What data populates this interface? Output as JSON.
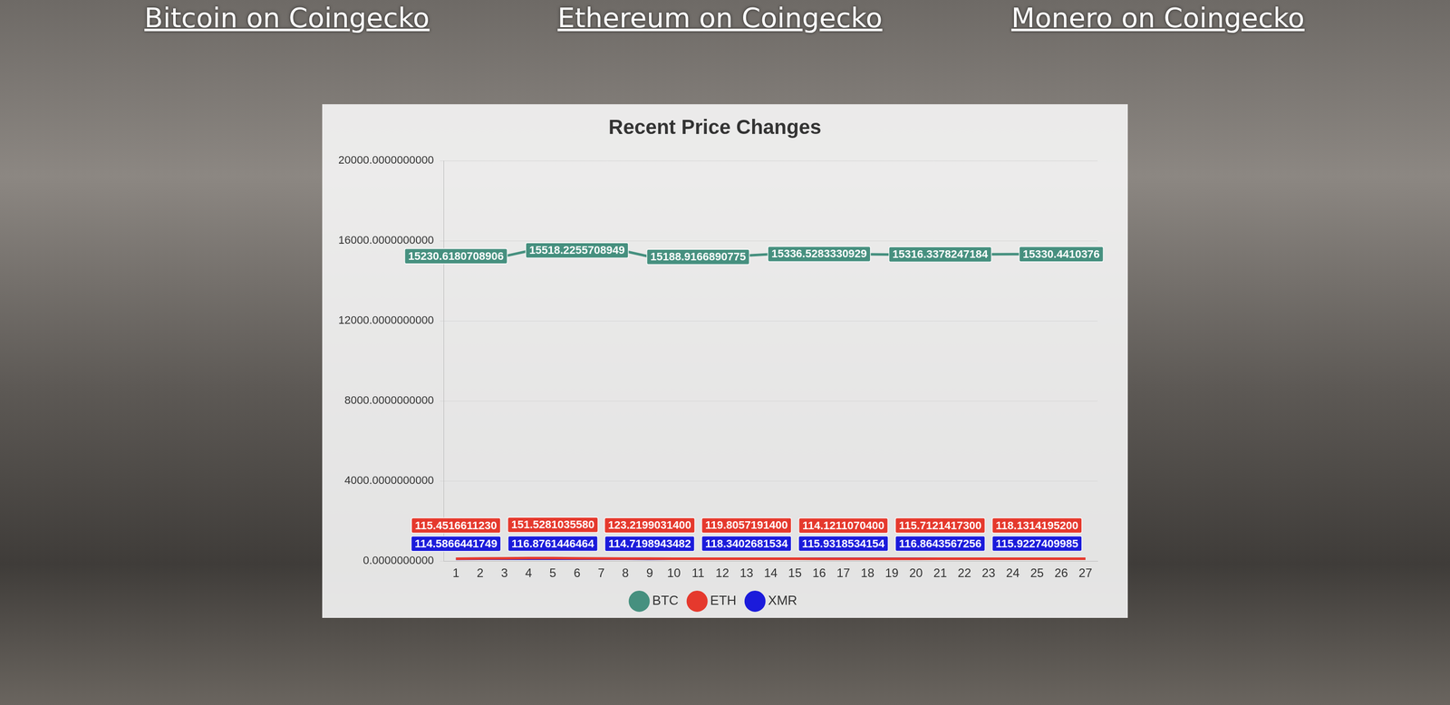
{
  "links": [
    "Bitcoin on Coingecko",
    "Ethereum on Coingecko",
    "Monero on Coingecko"
  ],
  "chart_data": {
    "type": "line",
    "title": "Recent Price Changes",
    "categories": [
      "1",
      "2",
      "3",
      "4",
      "5",
      "6",
      "7",
      "8",
      "9",
      "10",
      "11",
      "12",
      "13",
      "14",
      "15",
      "16",
      "17",
      "18",
      "19",
      "20",
      "21",
      "22",
      "23",
      "24",
      "25",
      "26",
      "27"
    ],
    "series": [
      {
        "name": "BTC",
        "color": "#46907f",
        "values": [
          15230.6180708906,
          15241,
          15225,
          15490,
          15512,
          15518.2255708949,
          15505,
          15470,
          15203,
          15195,
          15188.9166890775,
          15201,
          15262,
          15330,
          15342,
          15336.5283330929,
          15328,
          15320,
          15312,
          15310,
          15316.3378247184,
          15321,
          15325,
          15328,
          15331,
          15330.4410376,
          15333
        ],
        "value_labels": [
          "15230.6180708906",
          null,
          null,
          null,
          null,
          "15518.2255708949",
          null,
          null,
          null,
          null,
          "15188.9166890775",
          null,
          null,
          null,
          null,
          "15336.5283330929",
          null,
          null,
          null,
          null,
          "15316.3378247184",
          null,
          null,
          null,
          null,
          "15330.4410376",
          null
        ]
      },
      {
        "name": "ETH",
        "color": "#e5392d",
        "values": [
          115.451661123,
          128,
          140,
          148,
          151.528103558,
          140,
          131,
          126,
          123.21990314,
          121,
          120,
          119,
          119.80571914,
          118,
          116,
          115,
          114.12110704,
          114,
          115,
          115,
          115.71214173,
          116,
          117,
          118,
          118.13141952,
          118,
          118
        ],
        "value_labels": [
          "115.4516611230",
          null,
          null,
          null,
          "151.5281035580",
          null,
          null,
          null,
          "123.2199031400",
          null,
          null,
          null,
          "119.8057191400",
          null,
          null,
          null,
          "114.1211070400",
          null,
          null,
          null,
          "115.7121417300",
          null,
          null,
          null,
          "118.1314195200",
          null,
          null
        ]
      },
      {
        "name": "XMR",
        "color": "#1b1bdb",
        "values": [
          114.5866441749,
          115.3,
          116.1,
          116.6,
          116.8761446464,
          116.2,
          115.6,
          115.1,
          114.7198943482,
          115.6,
          116.8,
          117.7,
          118.3402681534,
          117.6,
          116.9,
          116.3,
          115.9318534154,
          116.2,
          116.5,
          116.7,
          116.8643567256,
          116.6,
          116.3,
          116.1,
          115.9227409985,
          116,
          116.1
        ],
        "value_labels": [
          "114.5866441749",
          null,
          null,
          null,
          "116.8761446464",
          null,
          null,
          null,
          "114.7198943482",
          null,
          null,
          null,
          "118.3402681534",
          null,
          null,
          null,
          "115.9318534154",
          null,
          null,
          null,
          "116.8643567256",
          null,
          null,
          null,
          "115.9227409985",
          null,
          null
        ]
      }
    ],
    "ylim": [
      0,
      20000
    ],
    "yticks": [
      {
        "value": 0,
        "label": "0.0000000000"
      },
      {
        "value": 4000,
        "label": "4000.0000000000"
      },
      {
        "value": 8000,
        "label": "8000.0000000000"
      },
      {
        "value": 12000,
        "label": "12000.0000000000"
      },
      {
        "value": 16000,
        "label": "16000.0000000000"
      },
      {
        "value": 20000,
        "label": "20000.0000000000"
      }
    ],
    "grid": true,
    "legend": "bottom",
    "data_labels": true
  }
}
